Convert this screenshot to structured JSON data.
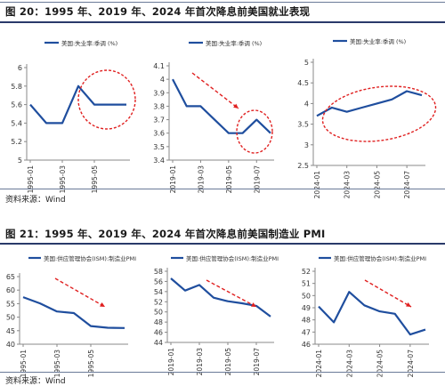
{
  "figures": [
    {
      "title": "图 20：1995 年、2019 年、2024 年首次降息前美国就业表现",
      "source": "资料来源：Wind"
    },
    {
      "title": "图 21：1995 年、2019 年、2024 年首次降息前美国制造业 PMI",
      "source": "资料来源：Wind"
    }
  ],
  "colors": {
    "series": "#1f4e9e",
    "annotation": "#e02020",
    "axis": "#888888"
  },
  "chart_data": [
    {
      "type": "line",
      "legend": "美国:失业率:季调 (%)",
      "legend_placement": "top-right",
      "x": [
        "1995-01",
        "1995-02",
        "1995-03",
        "1995-04",
        "1995-05",
        "1995-06",
        "1995-07"
      ],
      "xticks": [
        "1995-01",
        "1995-03",
        "1995-05"
      ],
      "values": [
        5.6,
        5.4,
        5.4,
        5.8,
        5.6,
        5.6,
        5.6
      ],
      "ylim": [
        5,
        6
      ],
      "yticks": [
        "5",
        "5.2",
        "5.4",
        "5.6",
        "5.8",
        "6"
      ],
      "grid": false,
      "annotation": {
        "kind": "ellipse",
        "around": [
          "1995-04",
          "1995-07"
        ]
      }
    },
    {
      "type": "line",
      "legend": "美国:失业率:季调 (%)",
      "legend_placement": "top-right",
      "x": [
        "2019-01",
        "2019-02",
        "2019-03",
        "2019-04",
        "2019-05",
        "2019-06",
        "2019-07",
        "2019-08"
      ],
      "xticks": [
        "2019-01",
        "2019-03",
        "2019-05",
        "2019-07"
      ],
      "values": [
        4.0,
        3.8,
        3.8,
        3.7,
        3.6,
        3.6,
        3.7,
        3.6
      ],
      "ylim": [
        3.4,
        4.1
      ],
      "yticks": [
        "3.4",
        "3.5",
        "3.6",
        "3.7",
        "3.8",
        "3.9",
        "4",
        "4.1"
      ],
      "grid": false,
      "annotation": {
        "kind": "arrow-and-ellipse"
      }
    },
    {
      "type": "line",
      "legend": "美国:失业率:季调 (%)",
      "legend_placement": "top-right",
      "x": [
        "2024-01",
        "2024-02",
        "2024-03",
        "2024-04",
        "2024-05",
        "2024-06",
        "2024-07",
        "2024-08"
      ],
      "xticks": [
        "2024-01",
        "2024-03",
        "2024-05",
        "2024-07"
      ],
      "values": [
        3.7,
        3.9,
        3.8,
        3.9,
        4.0,
        4.1,
        4.3,
        4.2
      ],
      "ylim": [
        2.5,
        5
      ],
      "yticks": [
        "2.5",
        "3",
        "3.5",
        "4",
        "4.5",
        "5"
      ],
      "grid": false,
      "annotation": {
        "kind": "ellipse"
      }
    },
    {
      "type": "line",
      "legend": "美国:供应管理协会(ISM):制造业PMI",
      "legend_placement": "top-right",
      "x": [
        "1995-01",
        "1995-02",
        "1995-03",
        "1995-04",
        "1995-05",
        "1995-06",
        "1995-07"
      ],
      "xticks": [
        "1995-01",
        "1995-03",
        "1995-05"
      ],
      "values": [
        57.4,
        55.1,
        52.1,
        51.5,
        46.7,
        46.1,
        46.0
      ],
      "ylim": [
        40,
        65
      ],
      "yticks": [
        "40",
        "45",
        "50",
        "55",
        "60",
        "65"
      ],
      "grid": false,
      "annotation": {
        "kind": "arrow"
      }
    },
    {
      "type": "line",
      "legend": "美国:供应管理协会(ISM):制造业PMI",
      "legend_placement": "top-right",
      "x": [
        "2019-01",
        "2019-02",
        "2019-03",
        "2019-04",
        "2019-05",
        "2019-06",
        "2019-07",
        "2019-08"
      ],
      "xticks": [
        "2019-01",
        "2019-03",
        "2019-05",
        "2019-07"
      ],
      "values": [
        56.6,
        54.2,
        55.3,
        52.8,
        52.1,
        51.7,
        51.2,
        49.1
      ],
      "ylim": [
        44,
        58
      ],
      "yticks": [
        "44",
        "46",
        "48",
        "50",
        "52",
        "54",
        "56",
        "58"
      ],
      "grid": false,
      "annotation": {
        "kind": "arrow"
      }
    },
    {
      "type": "line",
      "legend": "美国:供应管理协会(ISM):制造业PMI",
      "legend_placement": "top-right",
      "x": [
        "2024-01",
        "2024-02",
        "2024-03",
        "2024-04",
        "2024-05",
        "2024-06",
        "2024-07",
        "2024-08"
      ],
      "xticks": [
        "2024-01",
        "2024-03",
        "2024-05",
        "2024-07"
      ],
      "values": [
        49.1,
        47.8,
        50.3,
        49.2,
        48.7,
        48.5,
        46.8,
        47.2
      ],
      "ylim": [
        46,
        52
      ],
      "yticks": [
        "46",
        "47",
        "48",
        "49",
        "50",
        "51",
        "52"
      ],
      "grid": false,
      "annotation": {
        "kind": "arrow"
      }
    }
  ]
}
